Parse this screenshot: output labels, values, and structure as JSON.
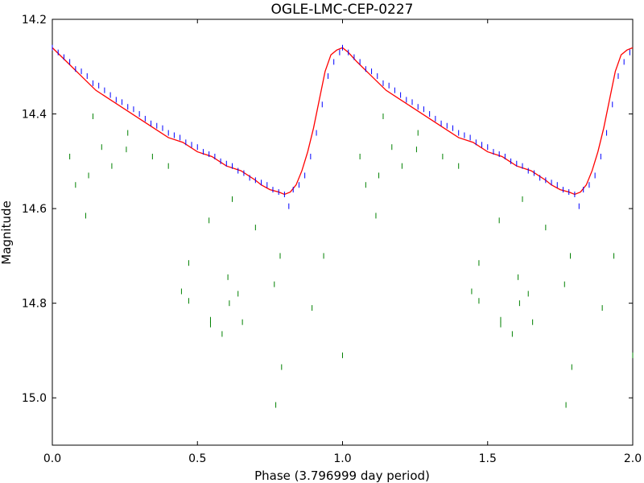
{
  "chart_data": {
    "type": "scatter",
    "title": "OGLE-LMC-CEP-0227",
    "xlabel": "Phase (3.796999 day period)",
    "ylabel": "Magnitude",
    "xlim": [
      0.0,
      2.0
    ],
    "ylim": [
      15.1,
      14.2
    ],
    "y_inverted": true,
    "xticks": [
      0.0,
      0.5,
      1.0,
      1.5,
      2.0
    ],
    "xtick_labels": [
      "0.0",
      "0.5",
      "1.0",
      "1.5",
      "2.0"
    ],
    "yticks": [
      14.2,
      14.4,
      14.6,
      14.8,
      15.0
    ],
    "ytick_labels": [
      "14.2",
      "14.4",
      "14.6",
      "14.8",
      "15.0"
    ],
    "grid": false,
    "colors": {
      "model": "#ff0000",
      "primary": "#0000ff",
      "secondary": "#008000"
    },
    "series": [
      {
        "kind": "model-curve",
        "color": "#ff0000",
        "x": [
          0.0,
          0.05,
          0.1,
          0.15,
          0.2,
          0.25,
          0.3,
          0.35,
          0.4,
          0.45,
          0.5,
          0.55,
          0.6,
          0.65,
          0.7,
          0.72,
          0.75,
          0.78,
          0.8,
          0.82,
          0.84,
          0.86,
          0.88,
          0.9,
          0.92,
          0.94,
          0.96,
          0.98,
          1.0,
          1.02,
          1.05,
          1.1,
          1.15,
          1.2,
          1.25,
          1.3,
          1.35,
          1.4,
          1.45,
          1.5,
          1.55,
          1.6,
          1.65,
          1.7,
          1.72,
          1.75,
          1.78,
          1.8,
          1.82,
          1.84,
          1.86,
          1.88,
          1.9,
          1.92,
          1.94,
          1.96,
          1.98,
          2.0
        ],
        "y": [
          14.26,
          14.29,
          14.32,
          14.35,
          14.37,
          14.39,
          14.41,
          14.43,
          14.45,
          14.46,
          14.48,
          14.49,
          14.51,
          14.52,
          14.54,
          14.55,
          14.56,
          14.565,
          14.57,
          14.565,
          14.55,
          14.52,
          14.48,
          14.43,
          14.37,
          14.31,
          14.275,
          14.265,
          14.26,
          14.27,
          14.29,
          14.32,
          14.35,
          14.37,
          14.39,
          14.41,
          14.43,
          14.45,
          14.46,
          14.48,
          14.49,
          14.51,
          14.52,
          14.54,
          14.55,
          14.56,
          14.565,
          14.57,
          14.565,
          14.55,
          14.52,
          14.48,
          14.43,
          14.37,
          14.31,
          14.275,
          14.265,
          14.26
        ]
      },
      {
        "kind": "observations",
        "color": "#0000ff",
        "x": [
          0.0,
          0.02,
          0.04,
          0.06,
          0.08,
          0.1,
          0.12,
          0.14,
          0.16,
          0.18,
          0.2,
          0.22,
          0.24,
          0.26,
          0.28,
          0.3,
          0.32,
          0.34,
          0.36,
          0.38,
          0.4,
          0.42,
          0.44,
          0.46,
          0.48,
          0.5,
          0.52,
          0.54,
          0.56,
          0.58,
          0.6,
          0.62,
          0.64,
          0.66,
          0.68,
          0.7,
          0.72,
          0.74,
          0.76,
          0.78,
          0.8,
          0.815,
          0.83,
          0.85,
          0.87,
          0.89,
          0.91,
          0.93,
          0.95,
          0.97,
          0.99,
          1.0,
          1.02,
          1.04,
          1.06,
          1.08,
          1.1,
          1.12,
          1.14,
          1.16,
          1.18,
          1.2,
          1.22,
          1.24,
          1.26,
          1.28,
          1.3,
          1.32,
          1.34,
          1.36,
          1.38,
          1.4,
          1.42,
          1.44,
          1.46,
          1.48,
          1.5,
          1.52,
          1.54,
          1.56,
          1.58,
          1.6,
          1.62,
          1.64,
          1.66,
          1.68,
          1.7,
          1.72,
          1.74,
          1.76,
          1.78,
          1.8,
          1.815,
          1.83,
          1.85,
          1.87,
          1.89,
          1.91,
          1.93,
          1.95,
          1.97,
          1.99
        ],
        "y": [
          14.26,
          14.27,
          14.28,
          14.29,
          14.305,
          14.31,
          14.32,
          14.335,
          14.34,
          14.35,
          14.36,
          14.37,
          14.375,
          14.385,
          14.39,
          14.4,
          14.41,
          14.42,
          14.425,
          14.43,
          14.44,
          14.445,
          14.45,
          14.46,
          14.465,
          14.47,
          14.48,
          14.485,
          14.49,
          14.5,
          14.505,
          14.51,
          14.52,
          14.525,
          14.535,
          14.54,
          14.545,
          14.55,
          14.56,
          14.565,
          14.57,
          14.595,
          14.56,
          14.55,
          14.53,
          14.49,
          14.44,
          14.38,
          14.32,
          14.29,
          14.27,
          14.26,
          14.27,
          14.28,
          14.29,
          14.305,
          14.31,
          14.32,
          14.335,
          14.34,
          14.35,
          14.36,
          14.37,
          14.375,
          14.385,
          14.39,
          14.4,
          14.41,
          14.42,
          14.425,
          14.43,
          14.44,
          14.445,
          14.45,
          14.46,
          14.465,
          14.47,
          14.48,
          14.485,
          14.49,
          14.5,
          14.505,
          14.51,
          14.52,
          14.525,
          14.535,
          14.54,
          14.545,
          14.55,
          14.56,
          14.565,
          14.57,
          14.595,
          14.56,
          14.55,
          14.53,
          14.49,
          14.44,
          14.38,
          14.32,
          14.29,
          14.27
        ]
      },
      {
        "kind": "observations",
        "color": "#008000",
        "x": [
          0.06,
          0.08,
          0.115,
          0.125,
          0.14,
          0.17,
          0.205,
          0.255,
          0.26,
          0.345,
          0.4,
          0.445,
          0.47,
          0.47,
          0.54,
          0.545,
          0.545,
          0.585,
          0.605,
          0.61,
          0.62,
          0.64,
          0.655,
          0.7,
          0.765,
          0.77,
          0.785,
          0.79,
          0.895,
          0.935,
          1.0,
          1.06,
          1.08,
          1.115,
          1.125,
          1.14,
          1.17,
          1.205,
          1.255,
          1.26,
          1.345,
          1.4,
          1.445,
          1.47,
          1.47,
          1.54,
          1.545,
          1.545,
          1.585,
          1.605,
          1.61,
          1.62,
          1.64,
          1.655,
          1.7,
          1.765,
          1.77,
          1.785,
          1.79,
          1.895,
          1.935,
          2.0
        ],
        "y": [
          14.49,
          14.55,
          14.615,
          14.53,
          14.405,
          14.47,
          14.51,
          14.475,
          14.44,
          14.49,
          14.51,
          14.775,
          14.795,
          14.715,
          14.625,
          14.835,
          14.845,
          14.865,
          14.745,
          14.8,
          14.58,
          14.78,
          14.84,
          14.64,
          14.76,
          15.015,
          14.7,
          14.935,
          14.81,
          14.7,
          14.91,
          14.49,
          14.55,
          14.615,
          14.53,
          14.405,
          14.47,
          14.51,
          14.475,
          14.44,
          14.49,
          14.51,
          14.775,
          14.795,
          14.715,
          14.625,
          14.835,
          14.845,
          14.865,
          14.745,
          14.8,
          14.58,
          14.78,
          14.84,
          14.64,
          14.76,
          15.015,
          14.7,
          14.935,
          14.81,
          14.7,
          14.91
        ]
      }
    ]
  }
}
